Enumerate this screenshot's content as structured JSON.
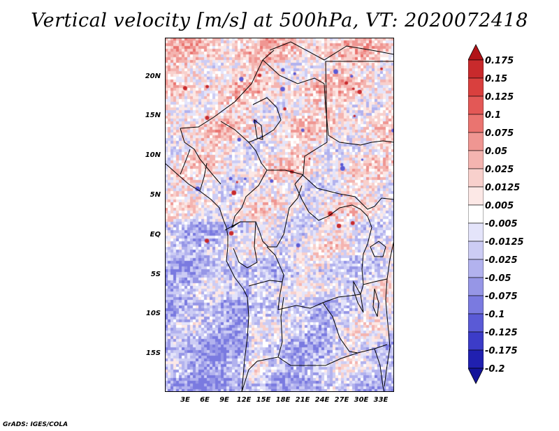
{
  "title": "Vertical velocity [m/s] at 500hPa, VT: 2020072418",
  "credit": "GrADS: IGES/COLA",
  "map": {
    "lat_range": [
      -20,
      25
    ],
    "lon_range": [
      0,
      35
    ],
    "lat_labels": [
      "20N",
      "15N",
      "10N",
      "5N",
      "EQ",
      "5S",
      "10S",
      "15S"
    ],
    "lat_values": [
      20,
      15,
      10,
      5,
      0,
      -5,
      -10,
      -15
    ],
    "lon_labels": [
      "3E",
      "6E",
      "9E",
      "12E",
      "15E",
      "18E",
      "21E",
      "24E",
      "27E",
      "30E",
      "33E"
    ],
    "lon_values": [
      3,
      6,
      9,
      12,
      15,
      18,
      21,
      24,
      27,
      30,
      33
    ]
  },
  "colorbar": {
    "labels": [
      "0.175",
      "0.15",
      "0.125",
      "0.1",
      "0.075",
      "0.05",
      "0.025",
      "0.0125",
      "0.005",
      "-0.005",
      "-0.0125",
      "-0.025",
      "-0.05",
      "-0.075",
      "-0.1",
      "-0.125",
      "-0.175",
      "-0.2"
    ],
    "colors": [
      "#b11418",
      "#c82a2c",
      "#d9403e",
      "#e35856",
      "#ea7470",
      "#ef9692",
      "#f4b4b0",
      "#f8d0cc",
      "#fce8e6",
      "#ffffff",
      "#e4e4fa",
      "#ccccf4",
      "#b2b2ee",
      "#9696e6",
      "#7a7ae0",
      "#5a5ad6",
      "#3c3cc8",
      "#2020b0",
      "#14149a"
    ]
  }
}
